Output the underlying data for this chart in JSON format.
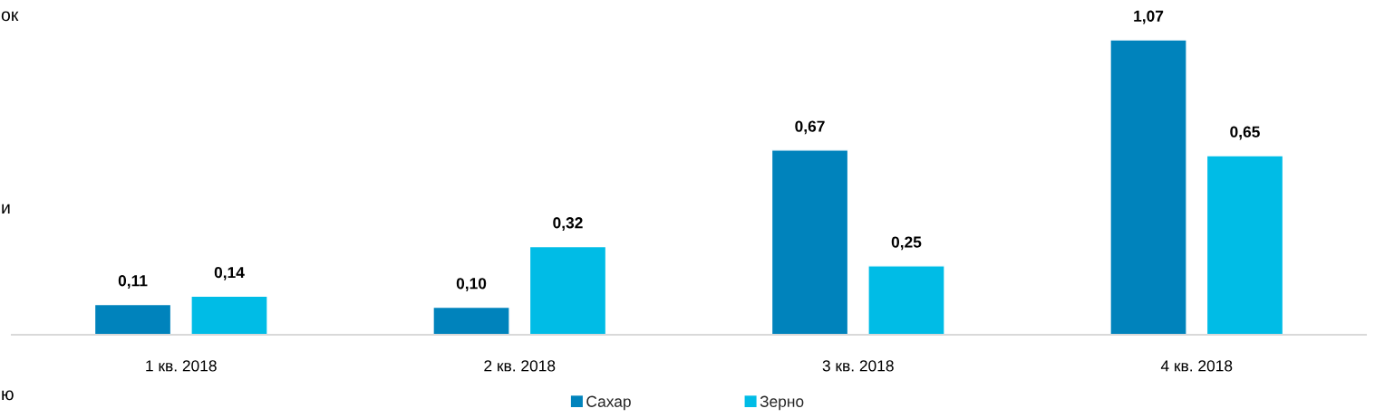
{
  "chart_data": {
    "type": "bar",
    "categories": [
      "1 кв. 2018",
      "2 кв. 2018",
      "3 кв. 2018",
      "4 кв. 2018"
    ],
    "series": [
      {
        "name": "Сахар",
        "color": "#0083bc",
        "values": [
          0.11,
          0.1,
          0.67,
          1.07
        ],
        "value_labels": [
          "0,11",
          "0,10",
          "0,67",
          "1,07"
        ]
      },
      {
        "name": "Зерно",
        "color": "#00bce6",
        "values": [
          0.14,
          0.32,
          0.25,
          0.65
        ],
        "value_labels": [
          "0,14",
          "0,32",
          "0,25",
          "0,65"
        ]
      }
    ],
    "legend": "bottom",
    "grid": false,
    "annotations": [
      "ок",
      "и",
      "ю"
    ]
  }
}
